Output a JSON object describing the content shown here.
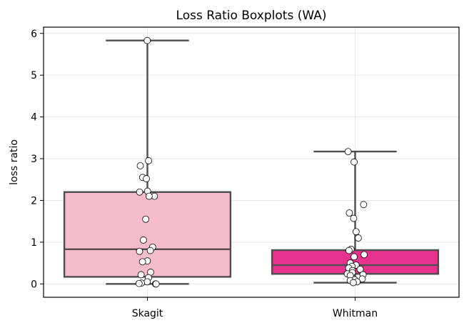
{
  "chart_data": {
    "type": "box",
    "title": "Loss Ratio Boxplots (WA)",
    "xlabel": "",
    "ylabel": "loss ratio",
    "ylim": [
      -0.32,
      6.15
    ],
    "yticks": [
      0,
      1,
      2,
      3,
      4,
      5,
      6
    ],
    "grid": true,
    "categories": [
      "Skagit",
      "Whitman"
    ],
    "series": [
      {
        "category": "Skagit",
        "color": "#f7bccb",
        "box": {
          "q1": 0.17,
          "median": 0.83,
          "q3": 2.2,
          "whisker_low": 0.0,
          "whisker_high": 5.83
        },
        "points": [
          5.83,
          2.95,
          2.83,
          2.55,
          2.52,
          2.22,
          2.2,
          2.1,
          2.1,
          1.55,
          1.05,
          0.88,
          0.8,
          0.78,
          0.55,
          0.53,
          0.28,
          0.22,
          0.15,
          0.05,
          0.02,
          0.01,
          0.0,
          0.0
        ]
      },
      {
        "category": "Whitman",
        "color": "#e8338e",
        "box": {
          "q1": 0.24,
          "median": 0.45,
          "q3": 0.81,
          "whisker_low": 0.03,
          "whisker_high": 3.17
        },
        "points": [
          3.17,
          2.92,
          1.9,
          1.7,
          1.57,
          1.25,
          1.1,
          0.83,
          0.8,
          0.7,
          0.65,
          0.5,
          0.45,
          0.42,
          0.38,
          0.35,
          0.32,
          0.27,
          0.24,
          0.22,
          0.2,
          0.12,
          0.1,
          0.08,
          0.05,
          0.03
        ]
      }
    ]
  }
}
